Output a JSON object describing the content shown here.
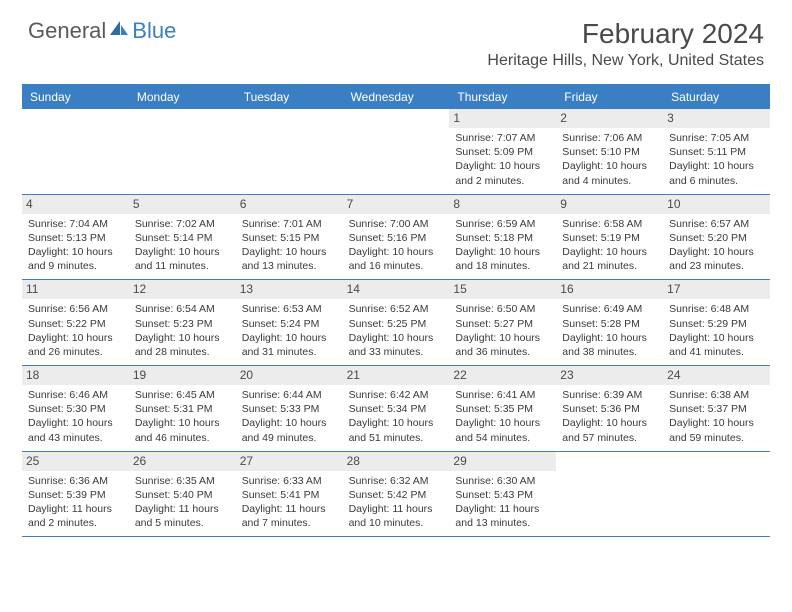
{
  "logo": {
    "general": "General",
    "blue": "Blue"
  },
  "title": "February 2024",
  "location": "Heritage Hills, New York, United States",
  "colors": {
    "accent": "#3a7fc4",
    "header_text": "#ffffff",
    "daybar_bg": "#ececec",
    "text": "#3a3a3a",
    "title_text": "#4a4a4a"
  },
  "dow": [
    "Sunday",
    "Monday",
    "Tuesday",
    "Wednesday",
    "Thursday",
    "Friday",
    "Saturday"
  ],
  "weeks": [
    [
      null,
      null,
      null,
      null,
      {
        "d": "1",
        "sr": "7:07 AM",
        "ss": "5:09 PM",
        "dl": "10 hours and 2 minutes."
      },
      {
        "d": "2",
        "sr": "7:06 AM",
        "ss": "5:10 PM",
        "dl": "10 hours and 4 minutes."
      },
      {
        "d": "3",
        "sr": "7:05 AM",
        "ss": "5:11 PM",
        "dl": "10 hours and 6 minutes."
      }
    ],
    [
      {
        "d": "4",
        "sr": "7:04 AM",
        "ss": "5:13 PM",
        "dl": "10 hours and 9 minutes."
      },
      {
        "d": "5",
        "sr": "7:02 AM",
        "ss": "5:14 PM",
        "dl": "10 hours and 11 minutes."
      },
      {
        "d": "6",
        "sr": "7:01 AM",
        "ss": "5:15 PM",
        "dl": "10 hours and 13 minutes."
      },
      {
        "d": "7",
        "sr": "7:00 AM",
        "ss": "5:16 PM",
        "dl": "10 hours and 16 minutes."
      },
      {
        "d": "8",
        "sr": "6:59 AM",
        "ss": "5:18 PM",
        "dl": "10 hours and 18 minutes."
      },
      {
        "d": "9",
        "sr": "6:58 AM",
        "ss": "5:19 PM",
        "dl": "10 hours and 21 minutes."
      },
      {
        "d": "10",
        "sr": "6:57 AM",
        "ss": "5:20 PM",
        "dl": "10 hours and 23 minutes."
      }
    ],
    [
      {
        "d": "11",
        "sr": "6:56 AM",
        "ss": "5:22 PM",
        "dl": "10 hours and 26 minutes."
      },
      {
        "d": "12",
        "sr": "6:54 AM",
        "ss": "5:23 PM",
        "dl": "10 hours and 28 minutes."
      },
      {
        "d": "13",
        "sr": "6:53 AM",
        "ss": "5:24 PM",
        "dl": "10 hours and 31 minutes."
      },
      {
        "d": "14",
        "sr": "6:52 AM",
        "ss": "5:25 PM",
        "dl": "10 hours and 33 minutes."
      },
      {
        "d": "15",
        "sr": "6:50 AM",
        "ss": "5:27 PM",
        "dl": "10 hours and 36 minutes."
      },
      {
        "d": "16",
        "sr": "6:49 AM",
        "ss": "5:28 PM",
        "dl": "10 hours and 38 minutes."
      },
      {
        "d": "17",
        "sr": "6:48 AM",
        "ss": "5:29 PM",
        "dl": "10 hours and 41 minutes."
      }
    ],
    [
      {
        "d": "18",
        "sr": "6:46 AM",
        "ss": "5:30 PM",
        "dl": "10 hours and 43 minutes."
      },
      {
        "d": "19",
        "sr": "6:45 AM",
        "ss": "5:31 PM",
        "dl": "10 hours and 46 minutes."
      },
      {
        "d": "20",
        "sr": "6:44 AM",
        "ss": "5:33 PM",
        "dl": "10 hours and 49 minutes."
      },
      {
        "d": "21",
        "sr": "6:42 AM",
        "ss": "5:34 PM",
        "dl": "10 hours and 51 minutes."
      },
      {
        "d": "22",
        "sr": "6:41 AM",
        "ss": "5:35 PM",
        "dl": "10 hours and 54 minutes."
      },
      {
        "d": "23",
        "sr": "6:39 AM",
        "ss": "5:36 PM",
        "dl": "10 hours and 57 minutes."
      },
      {
        "d": "24",
        "sr": "6:38 AM",
        "ss": "5:37 PM",
        "dl": "10 hours and 59 minutes."
      }
    ],
    [
      {
        "d": "25",
        "sr": "6:36 AM",
        "ss": "5:39 PM",
        "dl": "11 hours and 2 minutes."
      },
      {
        "d": "26",
        "sr": "6:35 AM",
        "ss": "5:40 PM",
        "dl": "11 hours and 5 minutes."
      },
      {
        "d": "27",
        "sr": "6:33 AM",
        "ss": "5:41 PM",
        "dl": "11 hours and 7 minutes."
      },
      {
        "d": "28",
        "sr": "6:32 AM",
        "ss": "5:42 PM",
        "dl": "11 hours and 10 minutes."
      },
      {
        "d": "29",
        "sr": "6:30 AM",
        "ss": "5:43 PM",
        "dl": "11 hours and 13 minutes."
      },
      null,
      null
    ]
  ],
  "labels": {
    "sunrise": "Sunrise:",
    "sunset": "Sunset:",
    "daylight": "Daylight:"
  }
}
